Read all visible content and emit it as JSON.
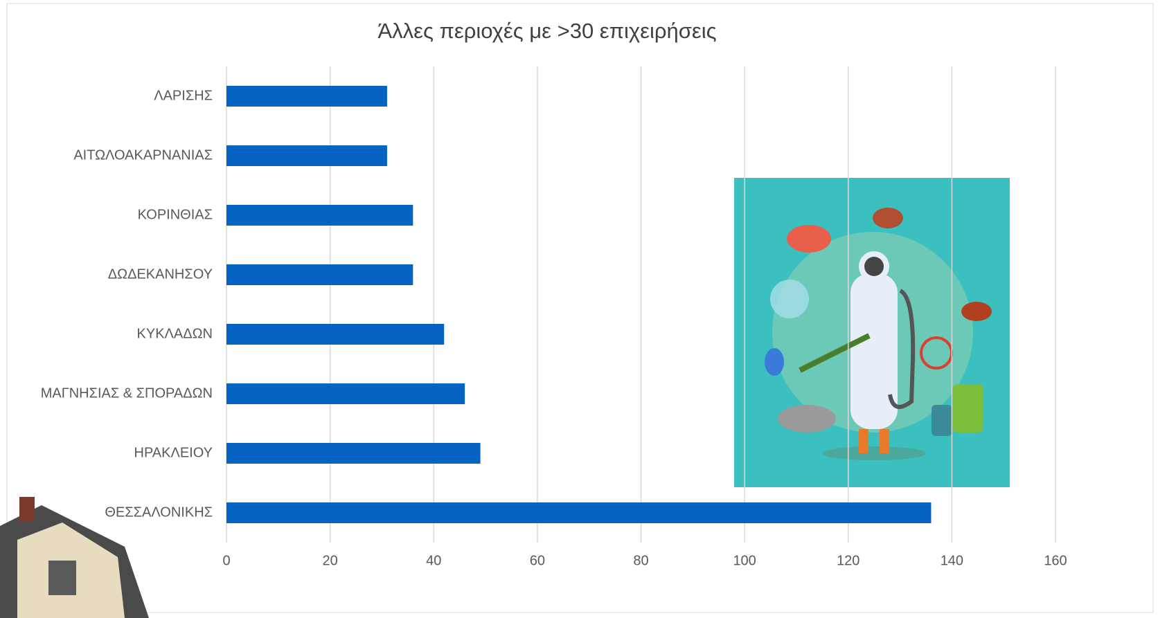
{
  "chart_data": {
    "type": "bar",
    "orientation": "horizontal",
    "title": "Άλλες περιοχές με >30 επιχειρήσεις",
    "categories": [
      "ΛΑΡΙΣΗΣ",
      "ΑΙΤΩΛΟΑΚΑΡΝΑΝΙΑΣ",
      "ΚΟΡΙΝΘΙΑΣ",
      "ΔΩΔΕΚΑΝΗΣΟΥ",
      "ΚΥΚΛΑΔΩΝ",
      "ΜΑΓΝΗΣΙΑΣ & ΣΠΟΡΑΔΩΝ",
      "ΗΡΑΚΛΕΙΟΥ",
      "ΘΕΣΣΑΛΟΝΙΚΗΣ"
    ],
    "values": [
      31,
      31,
      36,
      36,
      42,
      46,
      49,
      136
    ],
    "color": "#0563c1",
    "xlim": [
      0,
      160
    ],
    "xticks": [
      0,
      20,
      40,
      60,
      80,
      100,
      120,
      140,
      160
    ],
    "grid": true
  }
}
